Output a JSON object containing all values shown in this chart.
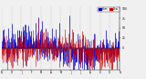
{
  "background_color": "#f0f0f0",
  "bar_color_blue": "#0000cc",
  "bar_color_red": "#cc0000",
  "legend_label_blue": "Hum",
  "legend_label_red": "Dew",
  "ylim": [
    -55,
    105
  ],
  "yticks": [
    0,
    25,
    50,
    75,
    100
  ],
  "num_days": 365,
  "seed": 42,
  "num_months": 13,
  "month_labels": [
    "N",
    "D",
    "J",
    "F",
    "M",
    "A",
    "M",
    "J",
    "J",
    "A",
    "S",
    "O",
    "N"
  ],
  "bar_width": 0.6,
  "linewidth_blue": 0.5,
  "linewidth_red": 0.4
}
